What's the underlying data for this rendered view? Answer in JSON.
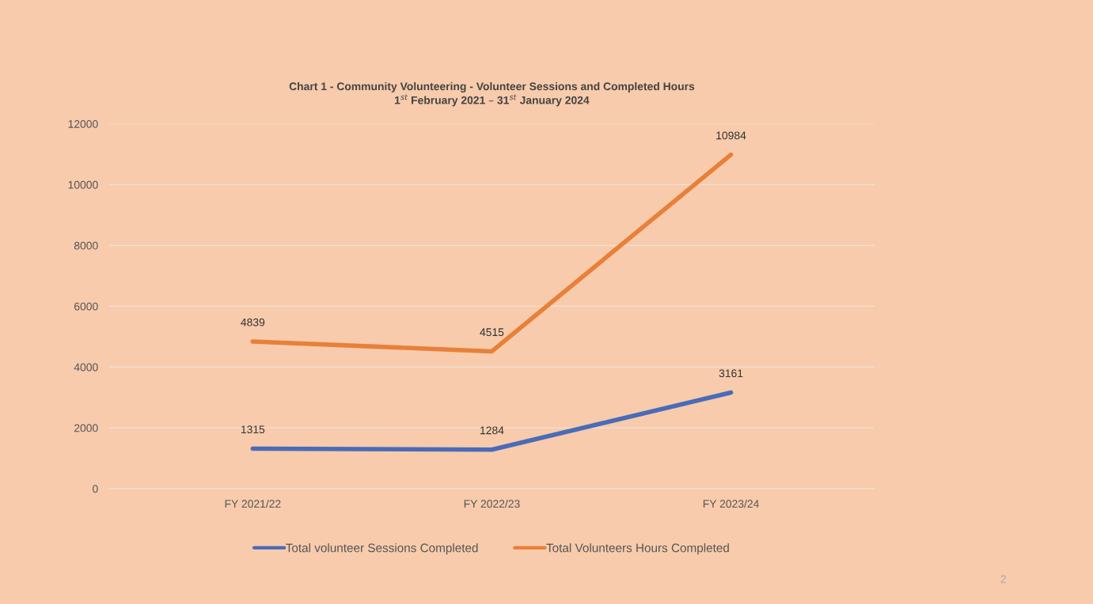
{
  "chart_data": {
    "type": "line",
    "title": "Chart 1 - Community Volunteering - Volunteer Sessions and Completed Hours\n1$^{st}$ February 2021 – 31$^{st}$ January 2024",
    "categories": [
      "FY 2021/22",
      "FY 2022/23",
      "FY 2023/24"
    ],
    "series": [
      {
        "name": "Total volunteer Sessions Completed",
        "color": "#4a6bb8",
        "values": [
          1315,
          1284,
          3161
        ]
      },
      {
        "name": "Total Volunteers Hours Completed",
        "color": "#e8803a",
        "values": [
          4839,
          4515,
          10984
        ]
      }
    ],
    "ylim": [
      0,
      12000
    ],
    "yticks": [
      0,
      2000,
      4000,
      6000,
      8000,
      10000,
      12000
    ],
    "grid": "y",
    "legend": "bottom",
    "data_labels": true,
    "marker": "none",
    "line_style": "solid",
    "annotations": [
      "2"
    ]
  }
}
